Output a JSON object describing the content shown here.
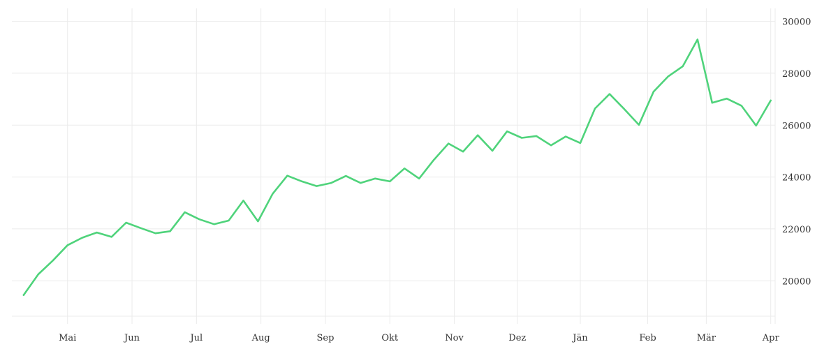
{
  "chart_data": {
    "type": "line",
    "title": "",
    "xlabel": "",
    "ylabel": "",
    "grid": true,
    "legend": "none",
    "y_axis_side": "right",
    "ylim": [
      18500,
      30500
    ],
    "y_ticks": [
      20000,
      22000,
      24000,
      26000,
      28000,
      30000
    ],
    "x_ticks": [
      {
        "label": "Mai",
        "x": 3
      },
      {
        "label": "Jun",
        "x": 7.4
      },
      {
        "label": "Jul",
        "x": 11.8
      },
      {
        "label": "Aug",
        "x": 16.2
      },
      {
        "label": "Sep",
        "x": 20.6
      },
      {
        "label": "Okt",
        "x": 25
      },
      {
        "label": "Nov",
        "x": 29.4
      },
      {
        "label": "Dez",
        "x": 33.7
      },
      {
        "label": "Jän",
        "x": 38
      },
      {
        "label": "Feb",
        "x": 42.6
      },
      {
        "label": "Mär",
        "x": 46.6
      },
      {
        "label": "Apr",
        "x": 51
      }
    ],
    "xlim": [
      -0.8,
      51.3
    ],
    "series": [
      {
        "color": "#4fd37b",
        "x": [
          0,
          1,
          2,
          3,
          4,
          5,
          6,
          7,
          8,
          9,
          10,
          11,
          12,
          13,
          14,
          15,
          16,
          17,
          18,
          19,
          20,
          21,
          22,
          23,
          24,
          25,
          26,
          27,
          28,
          29,
          30,
          31,
          32,
          33,
          34,
          35,
          36,
          37,
          38,
          39,
          40,
          41,
          42,
          43,
          44,
          45,
          46,
          47,
          48,
          49,
          50,
          51
        ],
        "values": [
          19450,
          20250,
          20780,
          21370,
          21660,
          21860,
          21690,
          22240,
          22030,
          21830,
          21910,
          22640,
          22370,
          22180,
          22320,
          23090,
          22290,
          23350,
          24050,
          23830,
          23650,
          23770,
          24040,
          23770,
          23940,
          23830,
          24330,
          23940,
          24660,
          25290,
          24980,
          25610,
          25010,
          25760,
          25510,
          25580,
          25220,
          25560,
          25310,
          26640,
          27200,
          26620,
          26010,
          27290,
          27880,
          28270,
          29300,
          26860,
          27020,
          26750,
          25980,
          26950
        ]
      }
    ]
  }
}
